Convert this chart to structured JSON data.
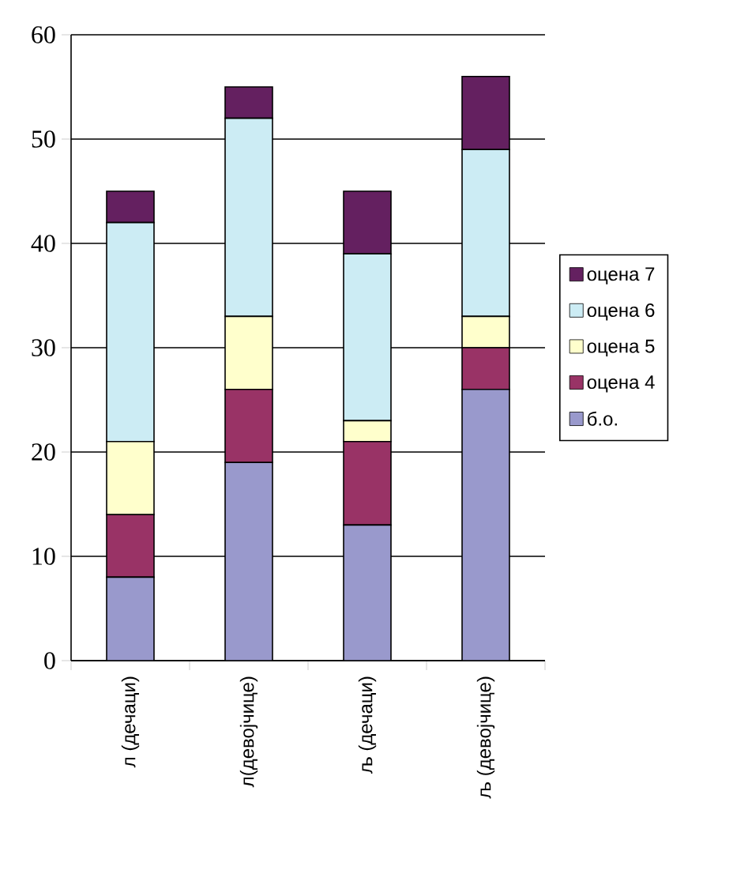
{
  "chart_data": {
    "type": "bar",
    "stacked": true,
    "categories": [
      "л (дечаци)",
      "л(девојчице)",
      "љ (дечаци)",
      "љ (девојчице)"
    ],
    "series": [
      {
        "name": "б.о.",
        "color": "#9999cc",
        "values": [
          8,
          19,
          13,
          26
        ]
      },
      {
        "name": "оцена 4",
        "color": "#993366",
        "values": [
          6,
          7,
          8,
          4
        ]
      },
      {
        "name": "оцена 5",
        "color": "#ffffcc",
        "values": [
          7,
          7,
          2,
          3
        ]
      },
      {
        "name": "оцена 6",
        "color": "#ccecf4",
        "values": [
          21,
          19,
          16,
          16
        ]
      },
      {
        "name": "оцена 7",
        "color": "#642060",
        "values": [
          3,
          3,
          6,
          7
        ]
      }
    ],
    "ylim": [
      0,
      60
    ],
    "yticks": [
      0,
      10,
      20,
      30,
      40,
      50,
      60
    ],
    "grid": "y",
    "legend": "right"
  }
}
